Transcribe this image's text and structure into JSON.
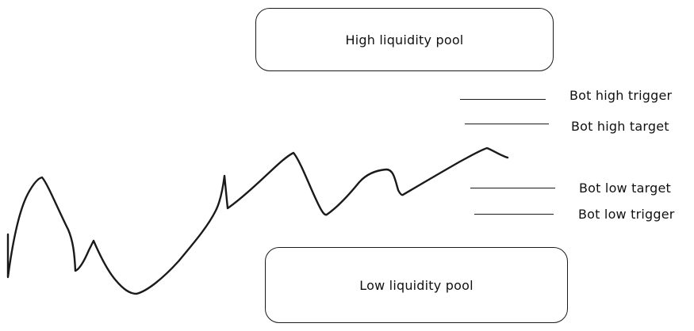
{
  "pools": {
    "high": {
      "label": "High liquidity pool"
    },
    "low": {
      "label": "Low liquidity pool"
    }
  },
  "levels": {
    "bot_high_trigger": {
      "label": "Bot high trigger"
    },
    "bot_high_target": {
      "label": "Bot high target"
    },
    "bot_low_target": {
      "label": "Bot low target"
    },
    "bot_low_trigger": {
      "label": "Bot low trigger"
    }
  },
  "colors": {
    "stroke": "#1a1a1a",
    "background": "#ffffff"
  }
}
